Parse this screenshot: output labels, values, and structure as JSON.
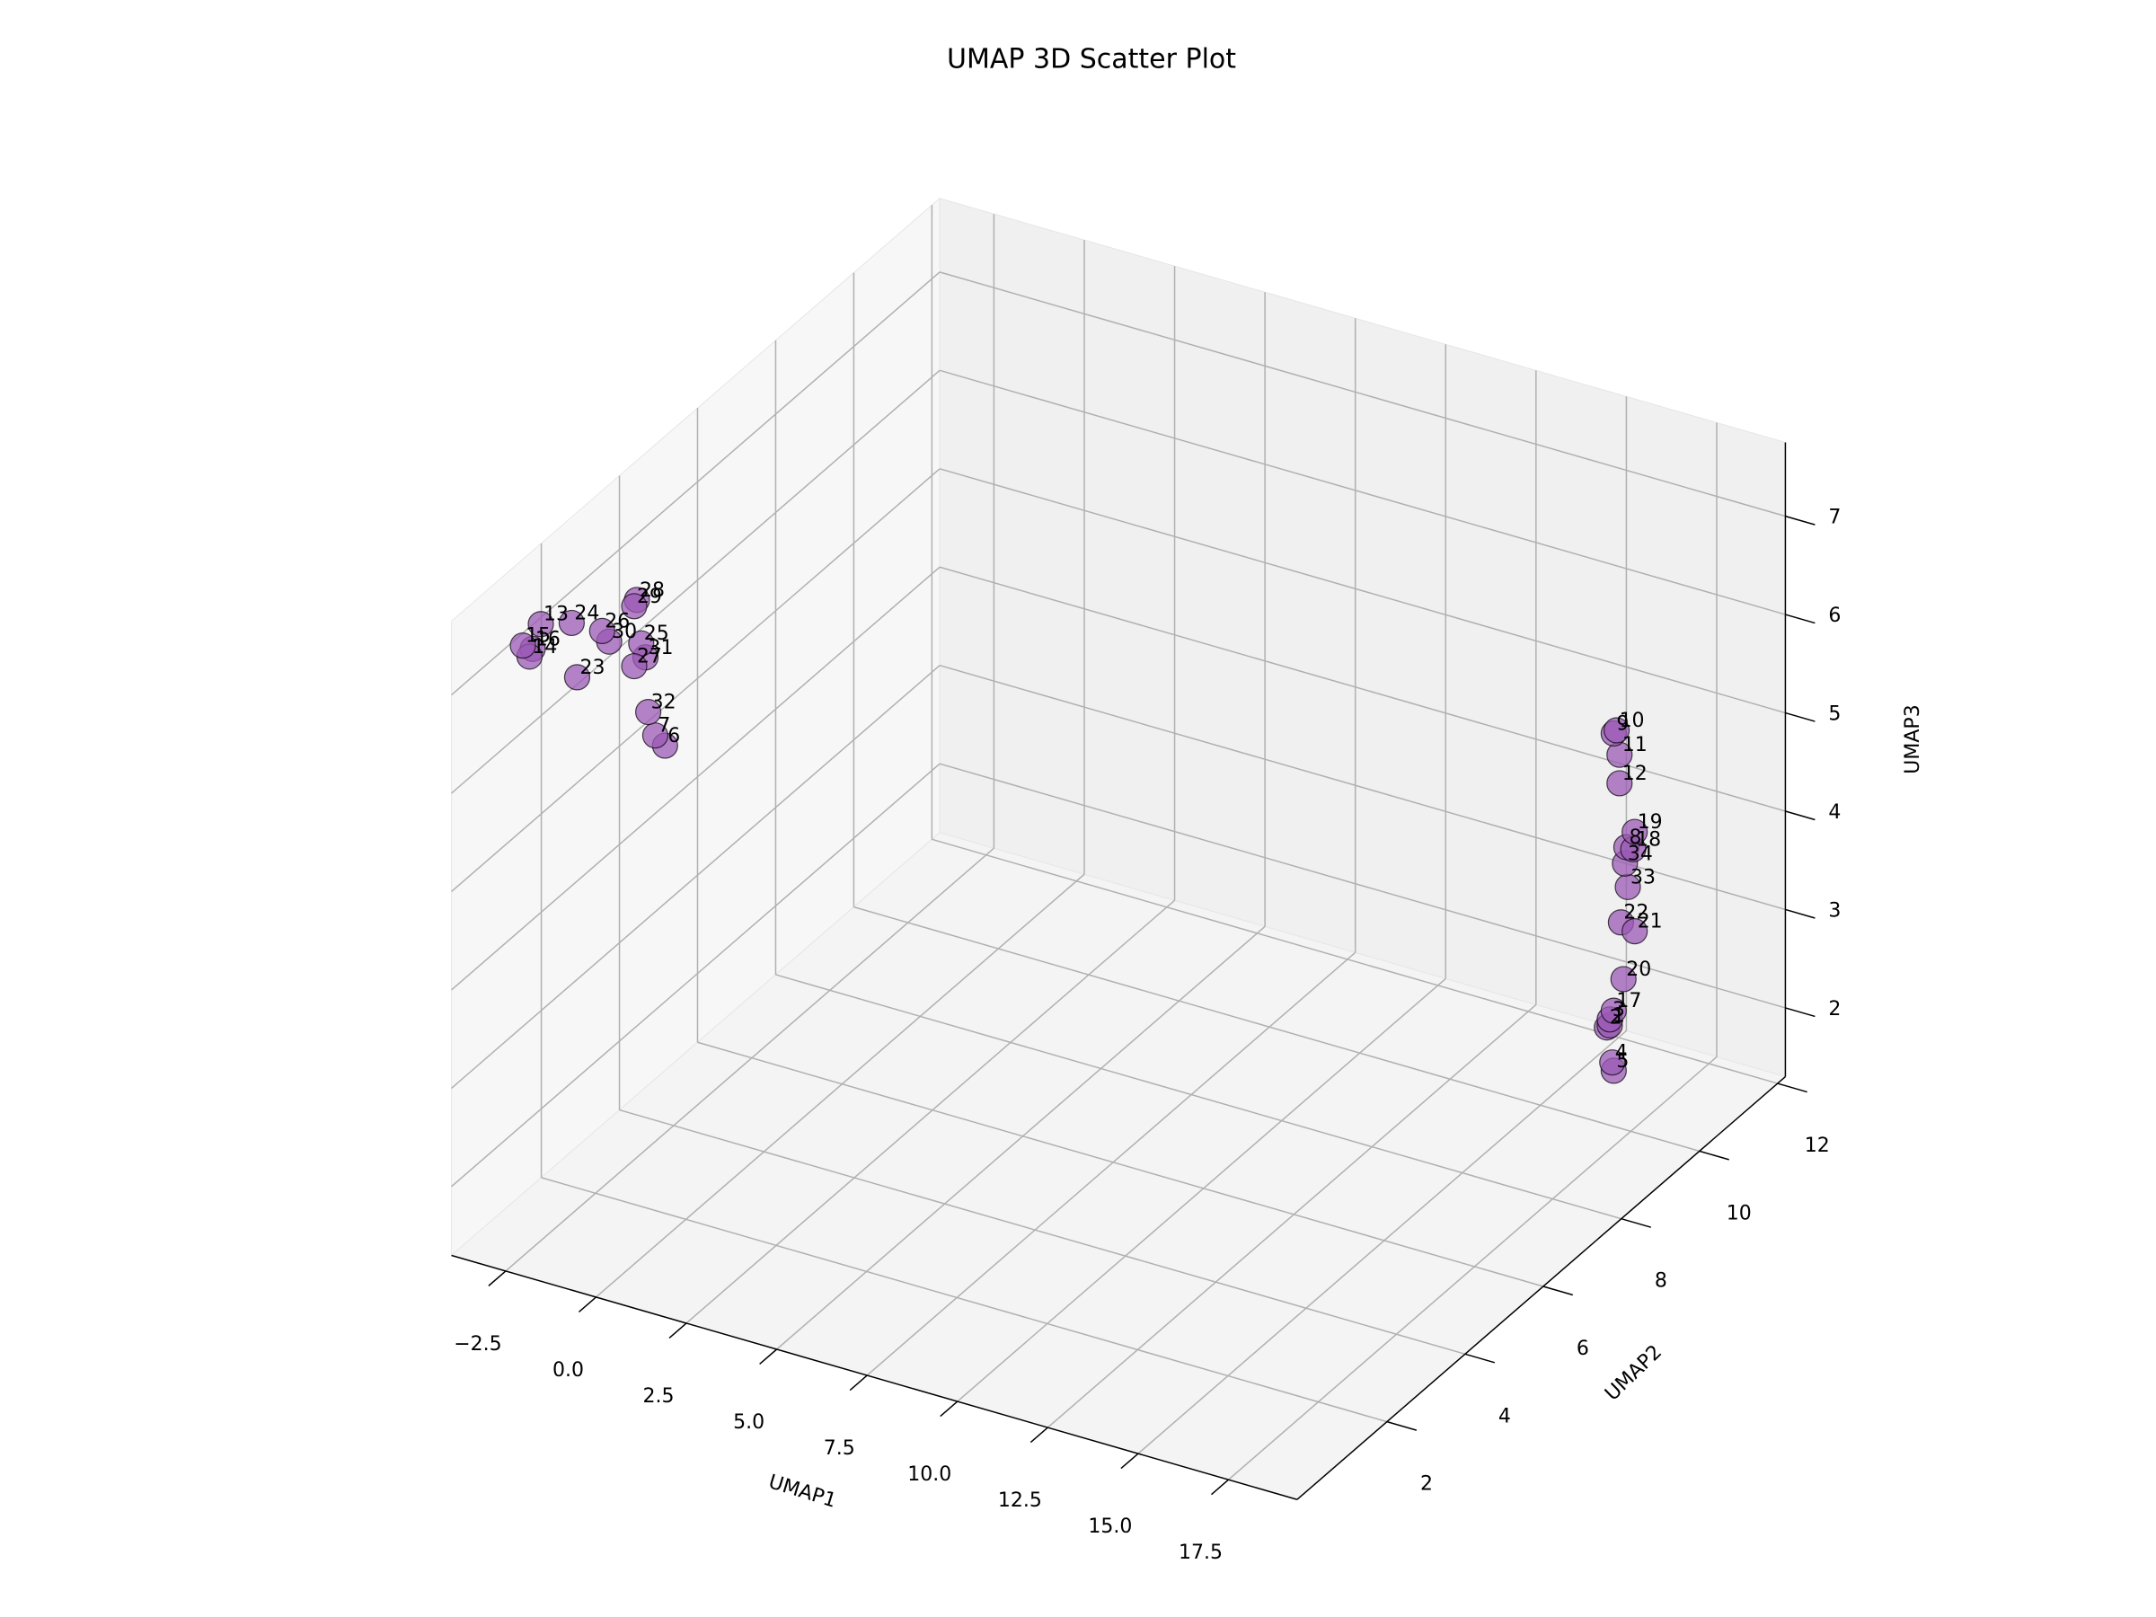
{
  "chart_data": {
    "type": "scatter3d",
    "title": "UMAP 3D Scatter Plot",
    "xlabel": "UMAP1",
    "ylabel": "UMAP2",
    "zlabel": "UMAP3",
    "labels": [
      "1",
      "2",
      "3",
      "4",
      "5",
      "6",
      "7",
      "8",
      "9",
      "10",
      "11",
      "12",
      "13",
      "14",
      "15",
      "16",
      "17",
      "18",
      "19",
      "20",
      "21",
      "22",
      "23",
      "24",
      "25",
      "26",
      "27",
      "28",
      "29",
      "30",
      "31",
      "32",
      "33",
      "34"
    ],
    "x": [
      16.81,
      16.73,
      16.81,
      16.88,
      16.92,
      -3.3,
      -3.3,
      17.27,
      16.92,
      17.0,
      17.08,
      17.08,
      -3.3,
      -3.3,
      -3.3,
      -3.3,
      16.92,
      17.46,
      17.5,
      17.19,
      17.5,
      17.12,
      -3.3,
      -3.3,
      -3.3,
      -3.3,
      -3.3,
      -3.3,
      -3.3,
      -3.3,
      -3.3,
      -3.3,
      17.31,
      17.23
    ],
    "y": [
      10.1,
      10.1,
      10.1,
      10.1,
      10.1,
      4.52,
      4.27,
      10.1,
      10.1,
      10.1,
      10.1,
      10.1,
      1.34,
      1.05,
      0.88,
      1.13,
      10.1,
      10.1,
      10.1,
      10.1,
      10.1,
      10.1,
      2.27,
      2.13,
      3.91,
      2.91,
      3.73,
      3.8,
      3.73,
      3.09,
      4.02,
      4.09,
      10.1,
      10.1
    ],
    "z": [
      2.27,
      2.24,
      2.33,
      1.9,
      1.82,
      4.9,
      5.09,
      4.13,
      5.25,
      5.29,
      5.05,
      4.76,
      7.23,
      7.0,
      7.17,
      7.05,
      2.43,
      4.13,
      4.31,
      2.78,
      3.3,
      3.35,
      6.37,
      6.97,
      6.15,
      6.62,
      5.98,
      6.63,
      6.59,
      6.45,
      5.97,
      5.39,
      3.73,
      3.96
    ],
    "color": "#9b59b6",
    "xlim": [
      -4.0,
      19.4
    ],
    "ylim": [
      -0.3,
      12.2
    ],
    "zlim": [
      1.3,
      7.75
    ],
    "xticks": [
      {
        "value": -2.5,
        "label": "−2.5"
      },
      {
        "value": 0,
        "label": "0.0"
      },
      2.5,
      {
        "value": 5,
        "label": "5.0"
      },
      7.5,
      {
        "value": 10,
        "label": "10.0"
      },
      12.5,
      {
        "value": 15,
        "label": "15.0"
      },
      17.5
    ],
    "yticks": [
      2,
      4,
      6,
      8,
      10,
      12
    ],
    "zticks": [
      2,
      3,
      4,
      5,
      6,
      7
    ],
    "grid": true
  }
}
